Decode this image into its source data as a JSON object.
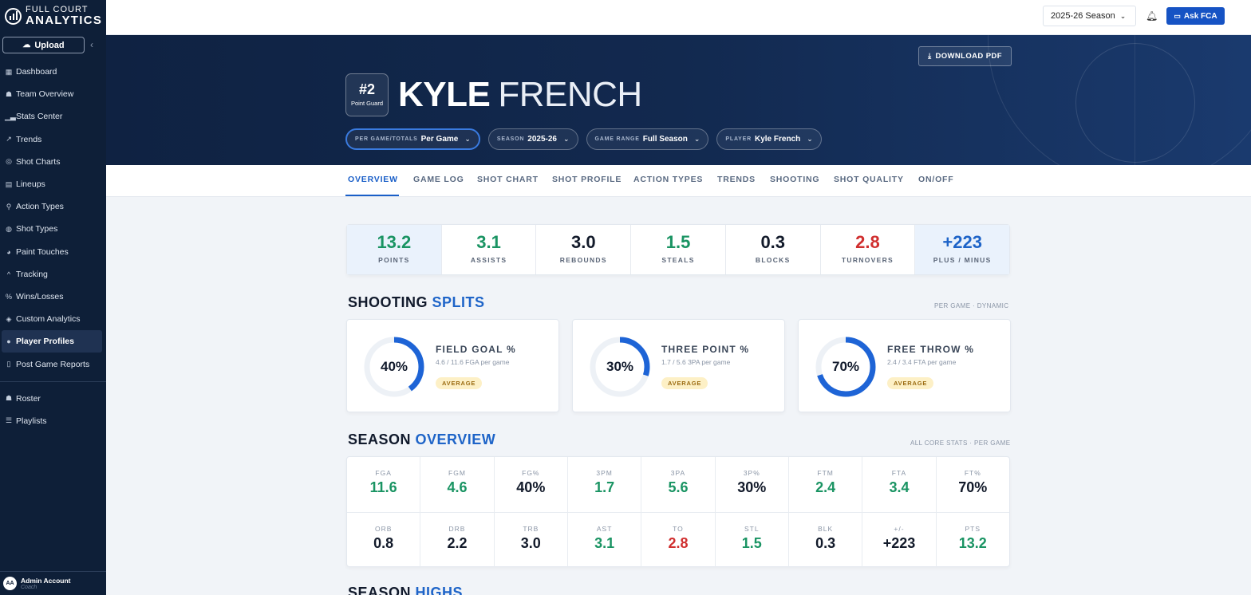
{
  "brand": {
    "line1": "FULL COURT",
    "line2": "ANALYTICS"
  },
  "sidebar": {
    "upload_label": "Upload",
    "items": [
      {
        "label": "Dashboard",
        "icon": "grid-icon"
      },
      {
        "label": "Team Overview",
        "icon": "team-icon"
      },
      {
        "label": "Stats Center",
        "icon": "bar-chart-icon"
      },
      {
        "label": "Trends",
        "icon": "trend-icon"
      },
      {
        "label": "Shot Charts",
        "icon": "target-icon"
      },
      {
        "label": "Lineups",
        "icon": "table-icon"
      },
      {
        "label": "Action Types",
        "icon": "running-icon"
      },
      {
        "label": "Shot Types",
        "icon": "basketball-icon"
      },
      {
        "label": "Paint Touches",
        "icon": "pie-icon"
      },
      {
        "label": "Tracking",
        "icon": "chevron-up-icon"
      },
      {
        "label": "Wins/Losses",
        "icon": "percent-icon"
      },
      {
        "label": "Custom Analytics",
        "icon": "tags-icon"
      },
      {
        "label": "Player Profiles",
        "icon": "user-icon",
        "active": true
      },
      {
        "label": "Post Game Reports",
        "icon": "document-icon"
      }
    ],
    "items2": [
      {
        "label": "Roster",
        "icon": "users-icon"
      },
      {
        "label": "Playlists",
        "icon": "playlist-icon"
      }
    ],
    "account": {
      "initials": "AA",
      "name": "Admin Account",
      "role": "Coach"
    }
  },
  "topbar": {
    "season": "2025-26 Season",
    "ask_label": "Ask FCA"
  },
  "hero": {
    "download_label": "DOWNLOAD PDF",
    "number": "#2",
    "position": "Point Guard",
    "first_name": "KYLE",
    "last_name": "FRENCH",
    "filters": [
      {
        "label": "PER GAME/TOTALS",
        "value": "Per Game"
      },
      {
        "label": "SEASON",
        "value": "2025-26"
      },
      {
        "label": "GAME RANGE",
        "value": "Full Season"
      },
      {
        "label": "PLAYER",
        "value": "Kyle French"
      }
    ]
  },
  "tabs": [
    "OVERVIEW",
    "GAME LOG",
    "SHOT CHART",
    "SHOT PROFILE",
    "ACTION TYPES",
    "TRENDS",
    "SHOOTING",
    "SHOT QUALITY",
    "ON/OFF"
  ],
  "summary": [
    {
      "value": "13.2",
      "label": "POINTS",
      "color": "#1a9463"
    },
    {
      "value": "3.1",
      "label": "ASSISTS",
      "color": "#1a9463"
    },
    {
      "value": "3.0",
      "label": "REBOUNDS",
      "color": "#121a2a"
    },
    {
      "value": "1.5",
      "label": "STEALS",
      "color": "#1a9463"
    },
    {
      "value": "0.3",
      "label": "BLOCKS",
      "color": "#121a2a"
    },
    {
      "value": "2.8",
      "label": "TURNOVERS",
      "color": "#d02f2f"
    },
    {
      "value": "+223",
      "label": "PLUS / MINUS",
      "color": "#1e64c8"
    }
  ],
  "shooting": {
    "title_a": "SHOOTING",
    "title_b": "SPLITS",
    "note": "PER GAME · DYNAMIC",
    "cards": [
      {
        "pct": "40%",
        "fraction": 0.4,
        "title": "FIELD GOAL %",
        "sub": "4.6 / 11.6 FGA per game",
        "tag": "AVERAGE"
      },
      {
        "pct": "30%",
        "fraction": 0.3,
        "title": "THREE POINT %",
        "sub": "1.7 / 5.6 3PA per game",
        "tag": "AVERAGE"
      },
      {
        "pct": "70%",
        "fraction": 0.7,
        "title": "FREE THROW %",
        "sub": "2.4 / 3.4 FTA per game",
        "tag": "AVERAGE"
      }
    ]
  },
  "season_overview": {
    "title_a": "SEASON",
    "title_b": "OVERVIEW",
    "note": "ALL CORE STATS · PER GAME",
    "row1": [
      {
        "label": "FGA",
        "value": "11.6",
        "color": "#1a9463"
      },
      {
        "label": "FGM",
        "value": "4.6",
        "color": "#1a9463"
      },
      {
        "label": "FG%",
        "value": "40%",
        "color": "#121a2a"
      },
      {
        "label": "3PM",
        "value": "1.7",
        "color": "#1a9463"
      },
      {
        "label": "3PA",
        "value": "5.6",
        "color": "#1a9463"
      },
      {
        "label": "3P%",
        "value": "30%",
        "color": "#121a2a"
      },
      {
        "label": "FTM",
        "value": "2.4",
        "color": "#1a9463"
      },
      {
        "label": "FTA",
        "value": "3.4",
        "color": "#1a9463"
      },
      {
        "label": "FT%",
        "value": "70%",
        "color": "#121a2a"
      }
    ],
    "row2": [
      {
        "label": "ORB",
        "value": "0.8",
        "color": "#121a2a"
      },
      {
        "label": "DRB",
        "value": "2.2",
        "color": "#121a2a"
      },
      {
        "label": "TRB",
        "value": "3.0",
        "color": "#121a2a"
      },
      {
        "label": "AST",
        "value": "3.1",
        "color": "#1a9463"
      },
      {
        "label": "TO",
        "value": "2.8",
        "color": "#d02f2f"
      },
      {
        "label": "STL",
        "value": "1.5",
        "color": "#1a9463"
      },
      {
        "label": "BLK",
        "value": "0.3",
        "color": "#121a2a"
      },
      {
        "label": "+/-",
        "value": "+223",
        "color": "#121a2a"
      },
      {
        "label": "PTS",
        "value": "13.2",
        "color": "#1a9463"
      }
    ]
  },
  "next_section": {
    "title_a": "SEASON",
    "title_b": "HIGHS"
  }
}
